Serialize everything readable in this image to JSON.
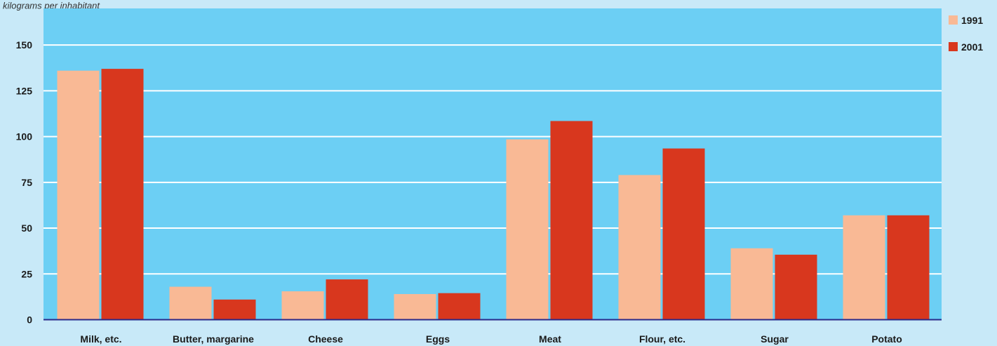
{
  "subtitle": "kilograms per inhabitant",
  "colors": {
    "page_bg": "#c8e9f8",
    "plot_bg": "#6ccff4",
    "grid": "#ffffff",
    "axis": "#2a2a8a",
    "series_1991": "#f9b995",
    "series_2001": "#d8371e"
  },
  "chart_data": {
    "type": "bar",
    "title": "",
    "xlabel": "",
    "ylabel": "",
    "ylim": [
      0,
      170
    ],
    "yticks": [
      "0",
      "25",
      "50",
      "75",
      "100",
      "125",
      "150"
    ],
    "grid": true,
    "legend_position": "right",
    "categories": [
      "Milk, etc.",
      "Butter, margarine",
      "Cheese",
      "Eggs",
      "Meat",
      "Flour, etc.",
      "Sugar",
      "Potato"
    ],
    "series": [
      {
        "name": "1991",
        "color": "#f9b995",
        "values": [
          136,
          18,
          15.5,
          14,
          98.5,
          79,
          39,
          57
        ]
      },
      {
        "name": "2001",
        "color": "#d8371e",
        "values": [
          137,
          11,
          22,
          14.5,
          108.5,
          93.5,
          35.5,
          57
        ]
      }
    ]
  }
}
